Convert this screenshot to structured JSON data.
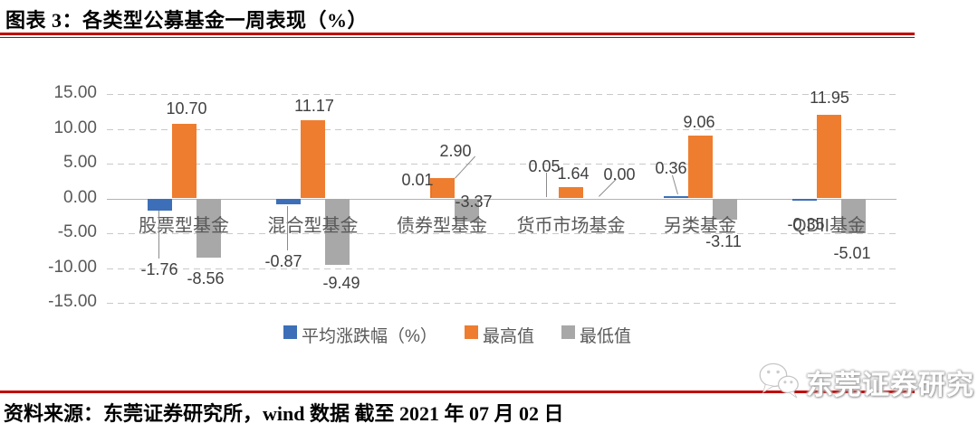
{
  "figure": {
    "title": "图表 3：各类型公募基金一周表现（%）"
  },
  "chart_data": {
    "type": "bar",
    "title": "各类型公募基金一周表现（%）",
    "categories": [
      "股票型基金",
      "混合型基金",
      "债券型基金",
      "货币市场基金",
      "另类基金",
      "QDII基金"
    ],
    "series": [
      {
        "name": "平均涨跌幅（%）",
        "color": "#3C6FB7",
        "values": [
          -1.76,
          -0.87,
          0.01,
          0.05,
          0.36,
          -0.35
        ]
      },
      {
        "name": "最高值",
        "color": "#EE7D2F",
        "values": [
          10.7,
          11.17,
          2.9,
          1.64,
          9.06,
          11.95
        ]
      },
      {
        "name": "最低值",
        "color": "#A8A8A8",
        "values": [
          -8.56,
          -9.49,
          -3.37,
          0.0,
          -3.11,
          -5.01
        ]
      }
    ],
    "xlabel": "",
    "ylabel": "",
    "ylim": [
      -15,
      15
    ],
    "ytick_step": 5,
    "ytick_labels": [
      "15.00",
      "10.00",
      "5.00",
      "0.00",
      "-5.00",
      "-10.00",
      "-15.00"
    ],
    "grid": true,
    "legend_position": "bottom",
    "value_labels": true
  },
  "footer": {
    "source": "资料来源：东莞证券研究所，wind 数据  截至 2021 年 07 月 02 日",
    "watermark": "东莞证券研究",
    "watermark_icon": "wechat-icon"
  },
  "colors": {
    "accent_red": "#C00000",
    "axis_text": "#595959",
    "value_text": "#404040",
    "leader_line": "#8C8C8C"
  }
}
